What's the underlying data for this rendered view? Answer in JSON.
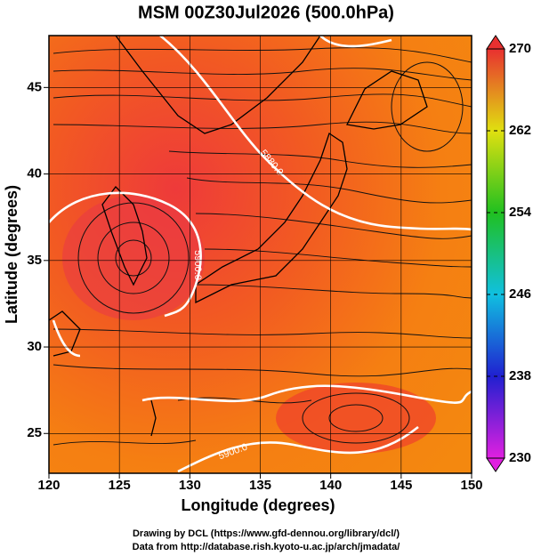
{
  "map": {
    "title": "MSM 00Z30Jul2026 (500.0hPa)",
    "x_label": "Longitude (degrees)",
    "y_label": "Latitude  (degrees)",
    "xlim": [
      120,
      150
    ],
    "ylim": [
      22.7,
      48
    ],
    "xticks": [
      120,
      125,
      130,
      135,
      140,
      145,
      150
    ],
    "yticks": [
      25,
      30,
      35,
      40,
      45
    ],
    "colorbar": {
      "lim": [
        230,
        270
      ],
      "ticks": [
        230,
        238,
        246,
        254,
        262,
        270
      ]
    },
    "contour_labels": [
      "5880.0",
      "5900.0",
      "5900.0"
    ],
    "footer": [
      "Drawing by DCL (https://www.gfd-dennou.org/library/dcl/)",
      "Data from http://database.rish.kyoto-u.ac.jp/arch/jmadata/"
    ]
  }
}
